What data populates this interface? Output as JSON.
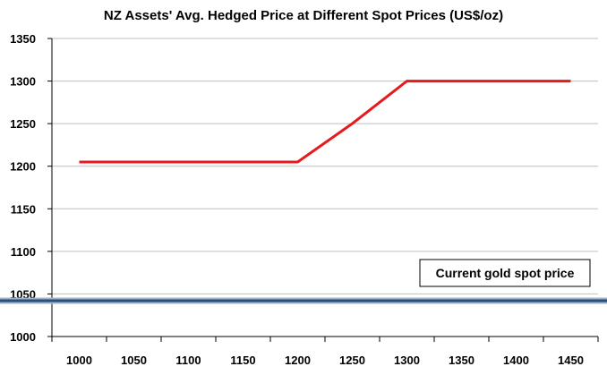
{
  "chart_data": {
    "type": "line",
    "title": "NZ Assets' Avg. Hedged Price at Different Spot Prices (US$/oz)",
    "xlabel": "",
    "ylabel": "",
    "x_ticks": [
      1000,
      1050,
      1100,
      1150,
      1200,
      1250,
      1300,
      1350,
      1400,
      1450
    ],
    "y_ticks": [
      1000,
      1050,
      1100,
      1150,
      1200,
      1250,
      1300,
      1350
    ],
    "xlim": [
      975,
      1475
    ],
    "ylim": [
      1000,
      1350
    ],
    "grid": "horizontal",
    "series": [
      {
        "color": "#e8191c",
        "x": [
          1000,
          1200,
          1250,
          1300,
          1450
        ],
        "y": [
          1205,
          1205,
          1250,
          1300,
          1300
        ]
      }
    ],
    "reference_line": {
      "y": 1042,
      "color": "#2b4f7a",
      "label": "Current gold spot price"
    }
  }
}
